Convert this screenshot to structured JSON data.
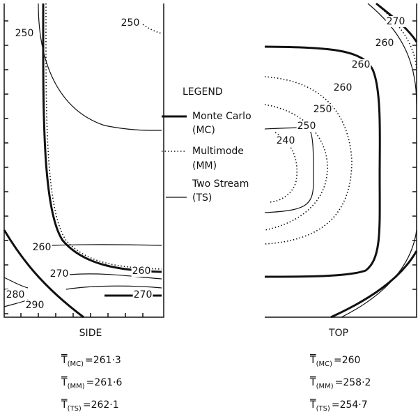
{
  "panels": [
    {
      "caption": "SIDE",
      "contour_labels": [
        "250",
        "250",
        "260",
        "270",
        "260",
        "270",
        "280",
        "290"
      ],
      "stats": [
        {
          "symbol": "T",
          "subscript": "(MC)",
          "relation": "=",
          "value": "261·3"
        },
        {
          "symbol": "T",
          "subscript": "(MM)",
          "relation": "=",
          "value": "261·6"
        },
        {
          "symbol": "T",
          "subscript": "(TS)",
          "relation": "=",
          "value": "262·1"
        }
      ]
    },
    {
      "caption": "TOP",
      "contour_labels": [
        "270",
        "260",
        "260",
        "260",
        "250",
        "250",
        "240"
      ],
      "stats": [
        {
          "symbol": "T",
          "subscript": "(MC)",
          "relation": "=",
          "value": "260"
        },
        {
          "symbol": "T",
          "subscript": "(MM)",
          "relation": "=",
          "value": "258·2"
        },
        {
          "symbol": "T",
          "subscript": "(TS)",
          "relation": "=",
          "value": "254·7"
        }
      ]
    }
  ],
  "legend": {
    "title": "LEGEND",
    "entries": [
      {
        "name": "Monte Carlo",
        "abbr": "(MC)"
      },
      {
        "name": "Multimode",
        "abbr": "(MM)"
      },
      {
        "name": "Two Stream",
        "abbr": "(TS)"
      }
    ]
  }
}
